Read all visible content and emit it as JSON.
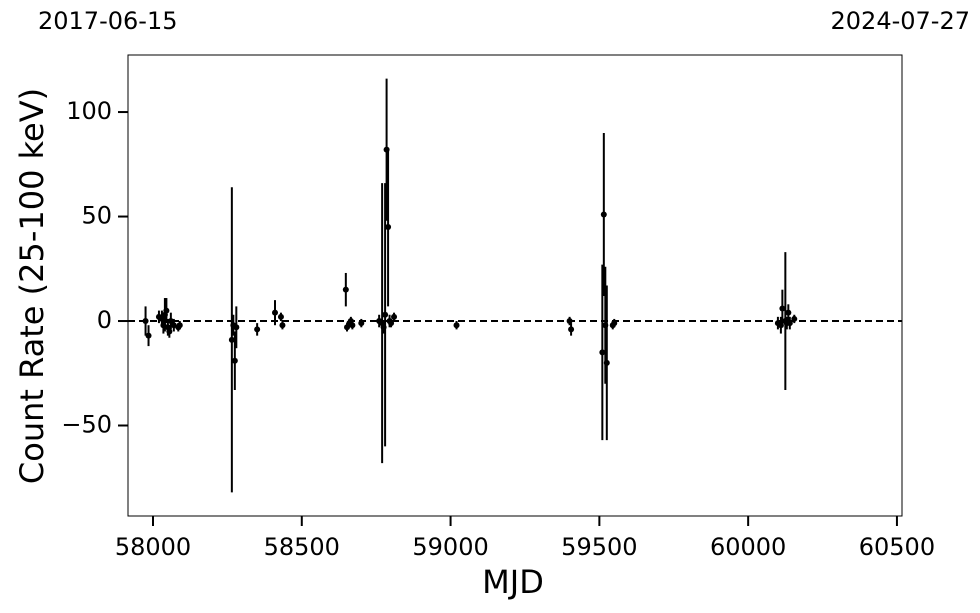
{
  "chart_data": {
    "type": "scatter",
    "top_left_label": "2017-06-15",
    "top_right_label": "2024-07-27",
    "xlabel": "MJD",
    "ylabel": "Count Rate (25-100 keV)",
    "color": "#000000",
    "hline": 0,
    "x": [
      57975,
      57985,
      58020,
      58030,
      58035,
      58040,
      58045,
      58050,
      58055,
      58060,
      58070,
      58085,
      58090,
      58265,
      58270,
      58275,
      58280,
      58350,
      58410,
      58430,
      58435,
      58648,
      58652,
      58660,
      58665,
      58670,
      58700,
      58760,
      58770,
      58775,
      58780,
      58785,
      58790,
      58795,
      58800,
      58810,
      59020,
      59400,
      59405,
      59510,
      59515,
      59520,
      59525,
      59545,
      59550,
      60100,
      60110,
      60115,
      60125,
      60130,
      60135,
      60140,
      60155
    ],
    "values": [
      0,
      -7,
      2,
      1,
      -2,
      3,
      5,
      -3,
      -5,
      0,
      -2,
      -3,
      -2,
      -9,
      -2,
      -19,
      -3,
      -4,
      4,
      2,
      -2,
      15,
      -3,
      -1,
      0,
      -2,
      -1,
      0,
      -1,
      -3,
      3,
      82,
      45,
      0,
      -1,
      2,
      -2,
      0,
      -4,
      -15,
      51,
      -2,
      -20,
      -2,
      -1,
      -1,
      -2,
      6,
      0,
      -1,
      4,
      -1,
      1
    ],
    "errors": [
      7,
      5,
      3,
      4,
      4,
      8,
      6,
      4,
      3,
      4,
      3,
      2,
      2,
      73,
      5,
      14,
      10,
      3,
      6,
      2,
      2,
      8,
      2,
      2,
      2,
      2,
      2,
      3,
      67,
      3,
      63,
      34,
      38,
      3,
      2,
      2,
      2,
      2,
      3,
      42,
      39,
      28,
      37,
      2,
      2,
      3,
      4,
      9,
      33,
      3,
      4,
      3,
      2
    ],
    "xlim": [
      57916,
      60517
    ],
    "ylim": [
      -93.3,
      127.3
    ],
    "xticks": [
      58000,
      58500,
      59000,
      59500,
      60000,
      60500
    ],
    "yticks": [
      {
        "value": -50,
        "label": "−50"
      },
      0,
      50,
      100
    ]
  }
}
